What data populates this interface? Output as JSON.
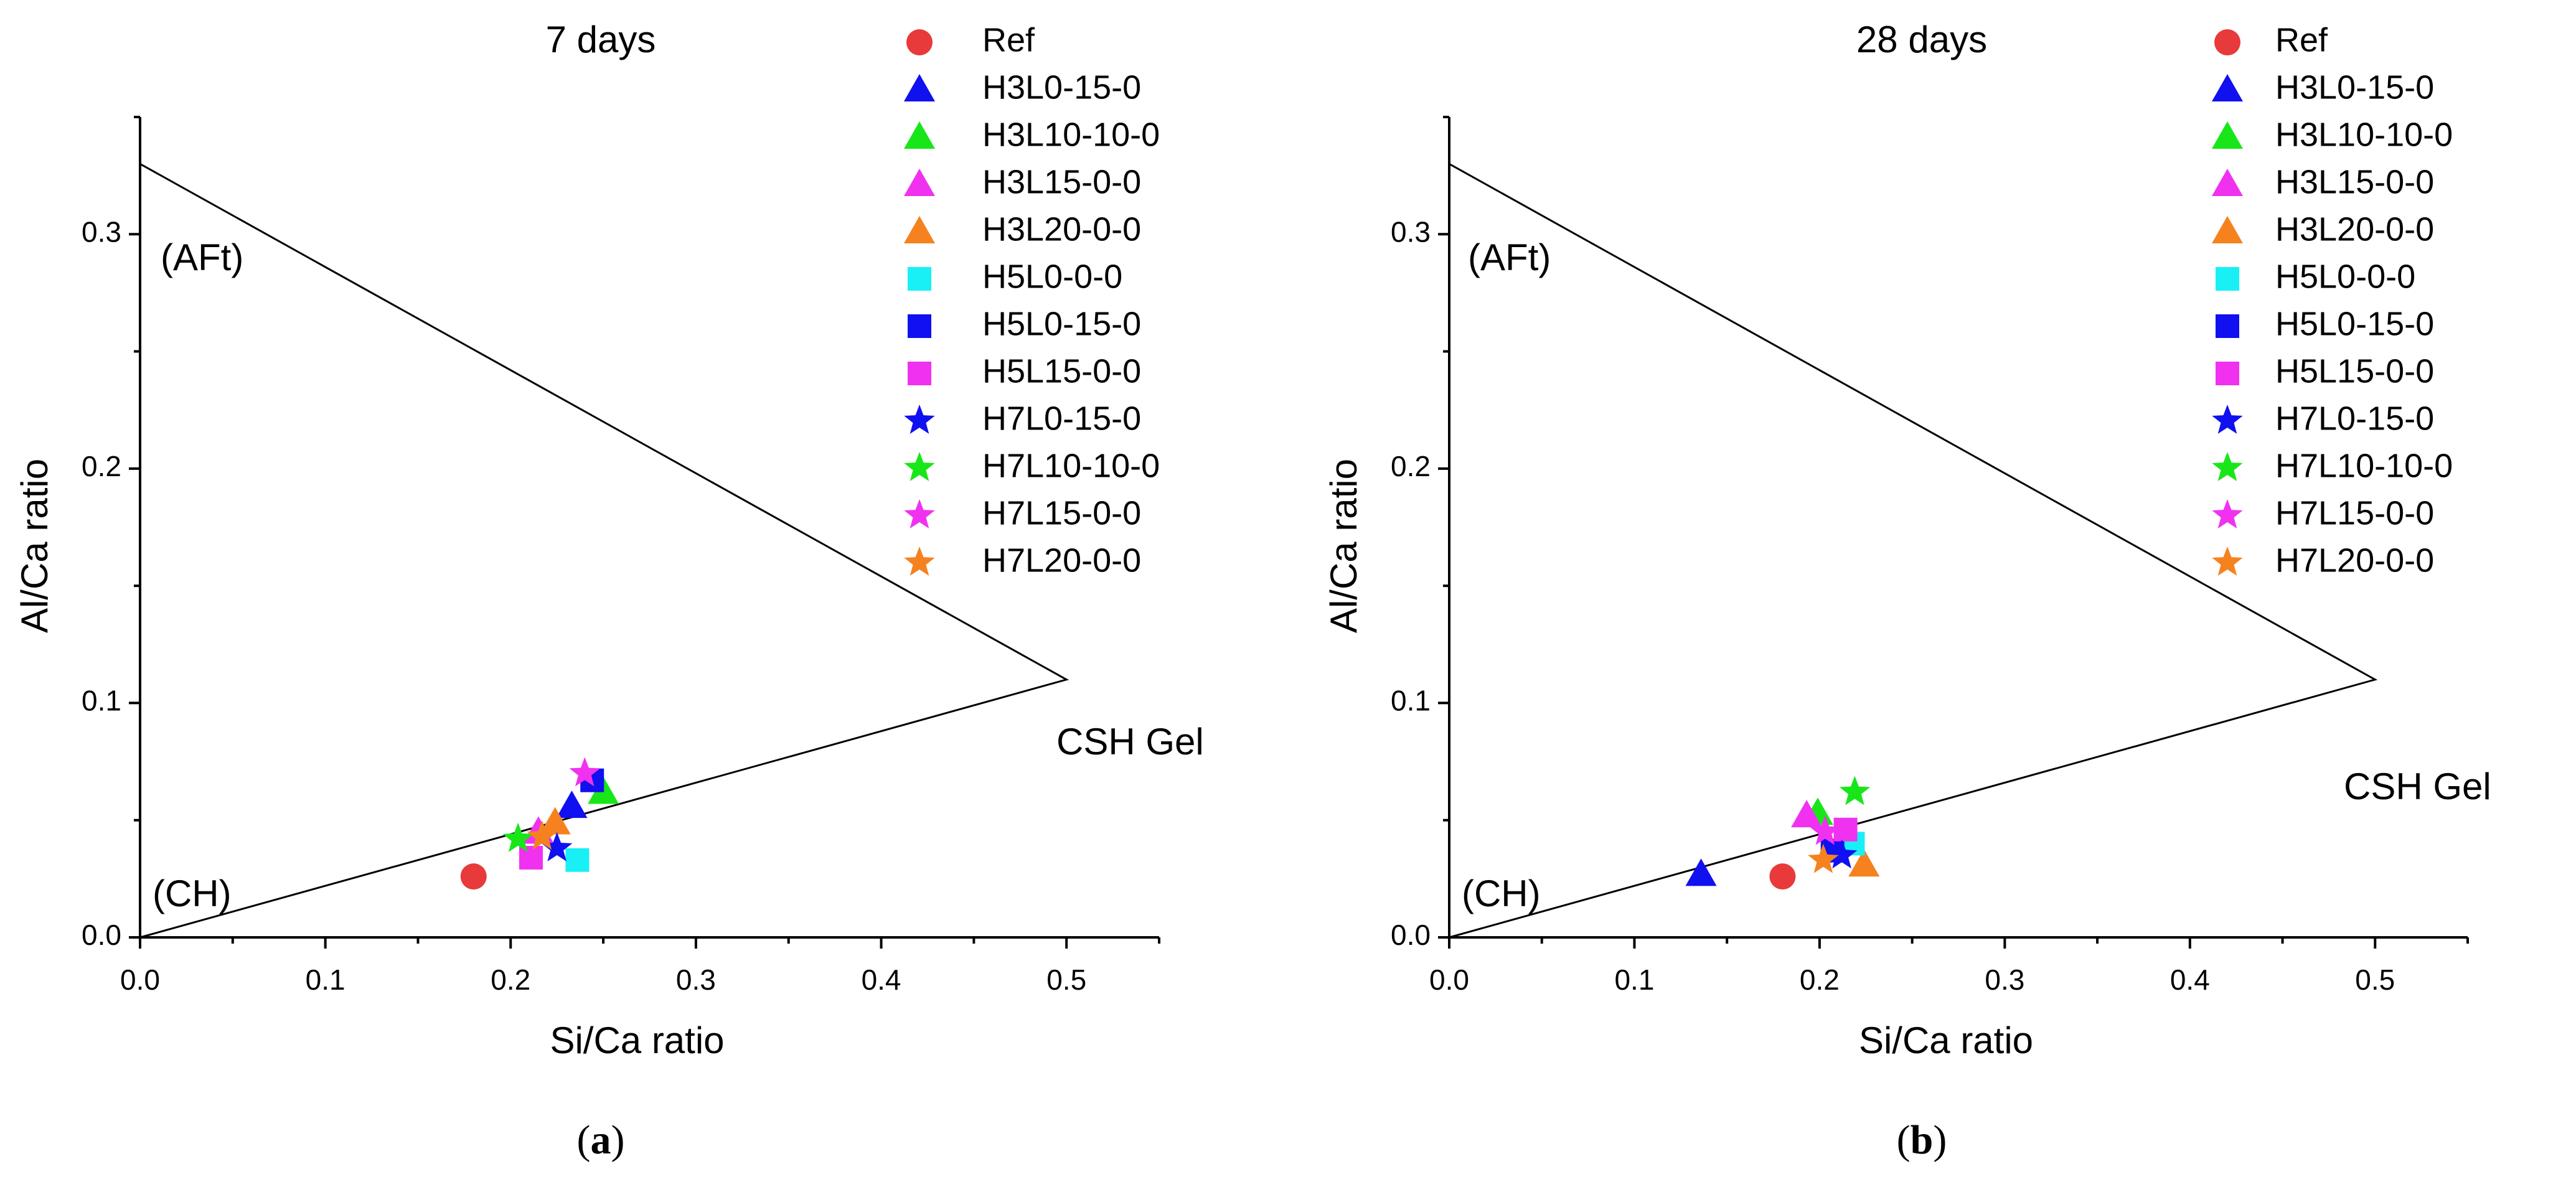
{
  "chart_data": [
    {
      "type": "scatter",
      "title": "7 days",
      "caption": {
        "open": "(",
        "letter": "a",
        "close": ")"
      },
      "xlabel": "Si/Ca ratio",
      "ylabel": "Al/Ca ratio",
      "xlim": [
        0.0,
        0.55
      ],
      "ylim": [
        0.0,
        0.35
      ],
      "xticks": [
        0.0,
        0.1,
        0.2,
        0.3,
        0.4,
        0.5
      ],
      "xtick_labels": [
        "0.0",
        "0.1",
        "0.2",
        "0.3",
        "0.4",
        "0.5"
      ],
      "yticks": [
        0.0,
        0.1,
        0.2,
        0.3
      ],
      "ytick_labels": [
        "0.0",
        "0.1",
        "0.2",
        "0.3"
      ],
      "legend": "top-right",
      "region_labels": {
        "aft": "(AFt)",
        "ch": "(CH)",
        "csh": "CSH Gel"
      },
      "triangle": [
        [
          0.0,
          0.0
        ],
        [
          0.0,
          0.33
        ],
        [
          0.5,
          0.11
        ]
      ],
      "series": [
        {
          "name": "Ref",
          "marker": "circle",
          "color": "#e8393b",
          "points": [
            [
              0.18,
              0.026
            ]
          ]
        },
        {
          "name": "H3L0-15-0",
          "marker": "triangle",
          "color": "#1010f0",
          "points": [
            [
              0.233,
              0.056
            ]
          ]
        },
        {
          "name": "H3L10-10-0",
          "marker": "triangle",
          "color": "#19e619",
          "points": [
            [
              0.25,
              0.062
            ]
          ]
        },
        {
          "name": "H3L15-0-0",
          "marker": "triangle",
          "color": "#f032f0",
          "points": [
            [
              0.215,
              0.045
            ]
          ]
        },
        {
          "name": "H3L20-0-0",
          "marker": "triangle",
          "color": "#f5821f",
          "points": [
            [
              0.224,
              0.049
            ]
          ]
        },
        {
          "name": "H5L0-0-0",
          "marker": "square",
          "color": "#19f0f5",
          "points": [
            [
              0.236,
              0.033
            ]
          ]
        },
        {
          "name": "H5L0-15-0",
          "marker": "square",
          "color": "#1010f0",
          "points": [
            [
              0.244,
              0.067
            ]
          ]
        },
        {
          "name": "H5L15-0-0",
          "marker": "square",
          "color": "#f032f0",
          "points": [
            [
              0.211,
              0.034
            ]
          ]
        },
        {
          "name": "H7L0-15-0",
          "marker": "star",
          "color": "#1010f0",
          "points": [
            [
              0.225,
              0.038
            ]
          ]
        },
        {
          "name": "H7L10-10-0",
          "marker": "star",
          "color": "#19e619",
          "points": [
            [
              0.204,
              0.042
            ]
          ]
        },
        {
          "name": "H7L15-0-0",
          "marker": "star",
          "color": "#f032f0",
          "points": [
            [
              0.24,
              0.07
            ]
          ]
        },
        {
          "name": "H7L20-0-0",
          "marker": "star",
          "color": "#f5821f",
          "points": [
            [
              0.217,
              0.043
            ]
          ]
        }
      ]
    },
    {
      "type": "scatter",
      "title": "28 days",
      "caption": {
        "open": "(",
        "letter": "b",
        "close": ")"
      },
      "xlabel": "Si/Ca ratio",
      "ylabel": "Al/Ca ratio",
      "xlim": [
        0.0,
        0.55
      ],
      "ylim": [
        0.0,
        0.35
      ],
      "xticks": [
        0.0,
        0.1,
        0.2,
        0.3,
        0.4,
        0.5
      ],
      "xtick_labels": [
        "0.0",
        "0.1",
        "0.2",
        "0.3",
        "0.4",
        "0.5"
      ],
      "yticks": [
        0.0,
        0.1,
        0.2,
        0.3
      ],
      "ytick_labels": [
        "0.0",
        "0.1",
        "0.2",
        "0.3"
      ],
      "legend": "top-right",
      "region_labels": {
        "aft": "(AFt)",
        "ch": "(CH)",
        "csh": "CSH Gel"
      },
      "triangle": [
        [
          0.0,
          0.0
        ],
        [
          0.0,
          0.33
        ],
        [
          0.5,
          0.11
        ]
      ],
      "series": [
        {
          "name": "Ref",
          "marker": "circle",
          "color": "#e8393b",
          "points": [
            [
              0.18,
              0.026
            ]
          ]
        },
        {
          "name": "H3L0-15-0",
          "marker": "triangle",
          "color": "#1010f0",
          "points": [
            [
              0.136,
              0.027
            ]
          ]
        },
        {
          "name": "H3L10-10-0",
          "marker": "triangle",
          "color": "#19e619",
          "points": [
            [
              0.199,
              0.053
            ]
          ]
        },
        {
          "name": "H3L15-0-0",
          "marker": "triangle",
          "color": "#f032f0",
          "points": [
            [
              0.193,
              0.052
            ]
          ]
        },
        {
          "name": "H3L20-0-0",
          "marker": "triangle",
          "color": "#f5821f",
          "points": [
            [
              0.224,
              0.031
            ]
          ]
        },
        {
          "name": "H5L0-0-0",
          "marker": "square",
          "color": "#19f0f5",
          "points": [
            [
              0.218,
              0.04
            ]
          ]
        },
        {
          "name": "H5L0-15-0",
          "marker": "square",
          "color": "#1010f0",
          "points": [
            [
              0.207,
              0.037
            ]
          ]
        },
        {
          "name": "H5L15-0-0",
          "marker": "square",
          "color": "#f032f0",
          "points": [
            [
              0.214,
              0.046
            ]
          ]
        },
        {
          "name": "H7L0-15-0",
          "marker": "star",
          "color": "#1010f0",
          "points": [
            [
              0.212,
              0.035
            ]
          ]
        },
        {
          "name": "H7L10-10-0",
          "marker": "star",
          "color": "#19e619",
          "points": [
            [
              0.219,
              0.062
            ]
          ]
        },
        {
          "name": "H7L15-0-0",
          "marker": "star",
          "color": "#f032f0",
          "points": [
            [
              0.203,
              0.045
            ]
          ]
        },
        {
          "name": "H7L20-0-0",
          "marker": "star",
          "color": "#f5821f",
          "points": [
            [
              0.202,
              0.033
            ]
          ]
        }
      ]
    }
  ]
}
